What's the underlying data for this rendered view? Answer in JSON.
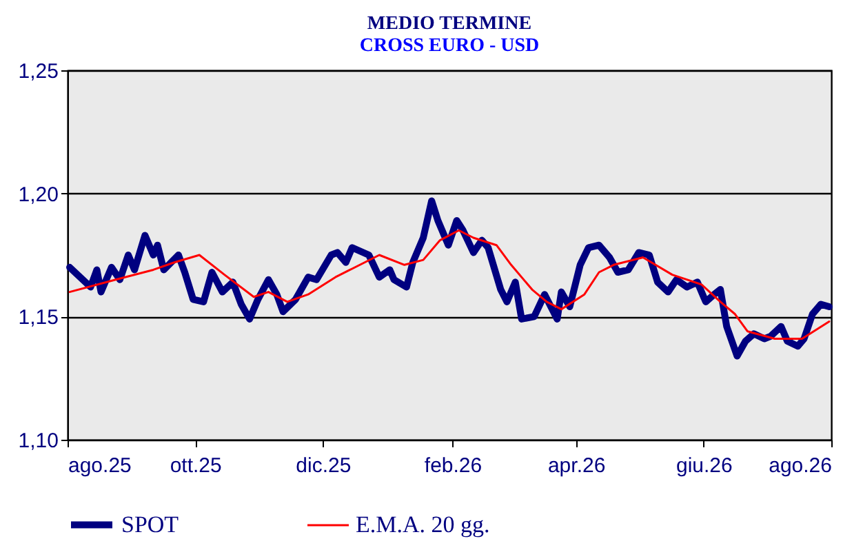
{
  "chart_data": {
    "type": "line",
    "title": "MEDIO TERMINE",
    "subtitle": "CROSS EURO - USD",
    "xlim": [
      "2025-08-01",
      "2026-08-01"
    ],
    "xticks": [
      {
        "value": "2025-08-01",
        "label": "ago.25"
      },
      {
        "value": "2025-10-01",
        "label": "ott.25"
      },
      {
        "value": "2025-12-01",
        "label": "dic.25"
      },
      {
        "value": "2026-02-01",
        "label": "feb.26"
      },
      {
        "value": "2026-04-01",
        "label": "apr.26"
      },
      {
        "value": "2026-06-01",
        "label": "giu.26"
      },
      {
        "value": "2026-08-01",
        "label": "ago.26"
      }
    ],
    "ylim": [
      1.1,
      1.25
    ],
    "yticks": [
      {
        "value": 1.1,
        "label": "1,10"
      },
      {
        "value": 1.15,
        "label": "1,15"
      },
      {
        "value": 1.2,
        "label": "1,20"
      },
      {
        "value": 1.25,
        "label": "1,25"
      }
    ],
    "grid": "y",
    "legend": "bottom",
    "marker": "none",
    "line_style": "solid",
    "series": [
      {
        "name": "SPOT",
        "color": "#000080",
        "x": [
          "2025-08-02",
          "2025-08-07",
          "2025-08-12",
          "2025-08-15",
          "2025-08-17",
          "2025-08-22",
          "2025-08-26",
          "2025-08-30",
          "2025-09-02",
          "2025-09-07",
          "2025-09-11",
          "2025-09-13",
          "2025-09-16",
          "2025-09-23",
          "2025-09-26",
          "2025-09-30",
          "2025-10-05",
          "2025-10-09",
          "2025-10-14",
          "2025-10-19",
          "2025-10-23",
          "2025-10-27",
          "2025-10-31",
          "2025-11-05",
          "2025-11-09",
          "2025-11-12",
          "2025-11-18",
          "2025-11-24",
          "2025-11-28",
          "2025-12-05",
          "2025-12-08",
          "2025-12-12",
          "2025-12-15",
          "2025-12-23",
          "2025-12-28",
          "2026-01-02",
          "2026-01-04",
          "2026-01-10",
          "2026-01-13",
          "2026-01-18",
          "2026-01-22",
          "2026-01-25",
          "2026-01-30",
          "2026-02-03",
          "2026-02-06",
          "2026-02-11",
          "2026-02-15",
          "2026-02-18",
          "2026-02-24",
          "2026-02-27",
          "2026-03-03",
          "2026-03-06",
          "2026-03-12",
          "2026-03-17",
          "2026-03-23",
          "2026-03-25",
          "2026-03-29",
          "2026-04-03",
          "2026-04-07",
          "2026-04-12",
          "2026-04-17",
          "2026-04-21",
          "2026-04-26",
          "2026-05-01",
          "2026-05-06",
          "2026-05-10",
          "2026-05-15",
          "2026-05-19",
          "2026-05-24",
          "2026-05-29",
          "2026-06-02",
          "2026-06-06",
          "2026-06-09",
          "2026-06-12",
          "2026-06-17",
          "2026-06-21",
          "2026-06-25",
          "2026-06-30",
          "2026-07-03",
          "2026-07-08",
          "2026-07-11",
          "2026-07-16",
          "2026-07-19",
          "2026-07-23",
          "2026-07-27",
          "2026-07-31"
        ],
        "values": [
          1.17,
          1.166,
          1.162,
          1.169,
          1.16,
          1.17,
          1.165,
          1.175,
          1.169,
          1.183,
          1.175,
          1.179,
          1.169,
          1.175,
          1.168,
          1.157,
          1.156,
          1.168,
          1.16,
          1.164,
          1.155,
          1.149,
          1.157,
          1.165,
          1.159,
          1.152,
          1.157,
          1.166,
          1.165,
          1.175,
          1.176,
          1.172,
          1.178,
          1.175,
          1.166,
          1.169,
          1.165,
          1.162,
          1.172,
          1.182,
          1.197,
          1.189,
          1.179,
          1.189,
          1.185,
          1.176,
          1.181,
          1.178,
          1.161,
          1.156,
          1.164,
          1.149,
          1.15,
          1.159,
          1.149,
          1.16,
          1.154,
          1.171,
          1.178,
          1.179,
          1.174,
          1.168,
          1.169,
          1.176,
          1.175,
          1.164,
          1.16,
          1.165,
          1.162,
          1.164,
          1.156,
          1.159,
          1.161,
          1.146,
          1.134,
          1.14,
          1.143,
          1.141,
          1.142,
          1.146,
          1.14,
          1.138,
          1.141,
          1.151,
          1.155,
          1.154
        ]
      },
      {
        "name": "E.M.A. 20 gg.",
        "color": "#ff0000",
        "x": [
          "2025-08-02",
          "2025-08-24",
          "2025-09-11",
          "2025-09-21",
          "2025-10-03",
          "2025-10-15",
          "2025-10-29",
          "2025-11-05",
          "2025-11-14",
          "2025-11-24",
          "2025-12-07",
          "2025-12-14",
          "2025-12-28",
          "2026-01-09",
          "2026-01-18",
          "2026-01-26",
          "2026-02-04",
          "2026-02-11",
          "2026-02-22",
          "2026-03-01",
          "2026-03-11",
          "2026-03-18",
          "2026-03-25",
          "2026-04-05",
          "2026-04-12",
          "2026-04-19",
          "2026-05-03",
          "2026-05-17",
          "2026-05-31",
          "2026-06-09",
          "2026-06-16",
          "2026-06-22",
          "2026-07-05",
          "2026-07-18",
          "2026-07-31"
        ],
        "values": [
          1.16,
          1.165,
          1.169,
          1.172,
          1.175,
          1.167,
          1.158,
          1.16,
          1.156,
          1.159,
          1.166,
          1.169,
          1.175,
          1.171,
          1.173,
          1.181,
          1.185,
          1.182,
          1.179,
          1.171,
          1.161,
          1.156,
          1.153,
          1.159,
          1.168,
          1.171,
          1.174,
          1.167,
          1.163,
          1.156,
          1.151,
          1.144,
          1.141,
          1.141,
          1.148
        ]
      }
    ]
  }
}
